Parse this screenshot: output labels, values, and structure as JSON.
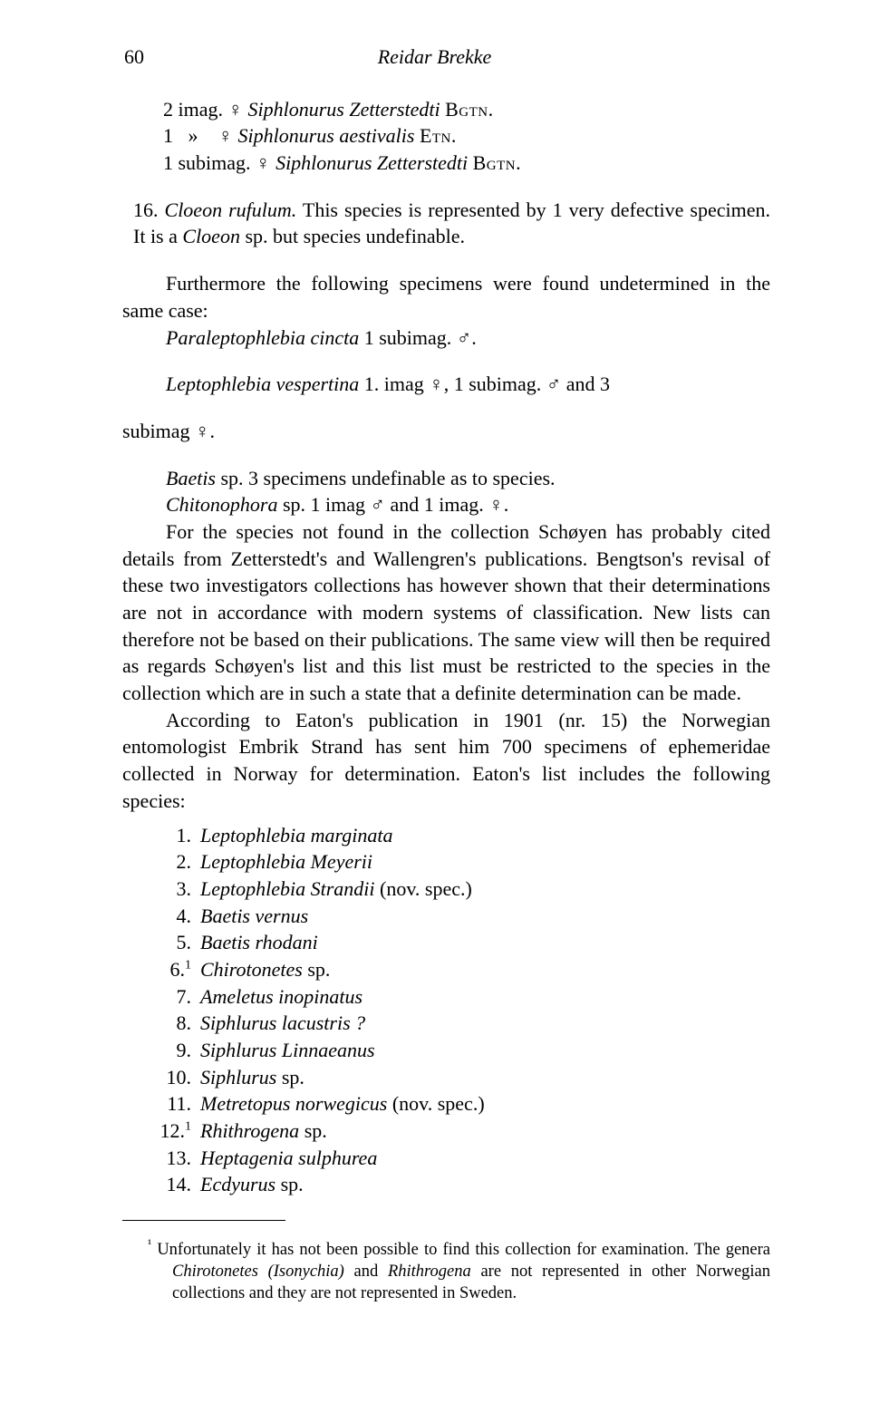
{
  "page_number": "60",
  "author": "Reidar Brekke",
  "entries": {
    "e1": "2 imag. ♀ Siphlonurus Zetterstedti Bgtn.",
    "e2": "1   »    ♀ Siphlonurus aestivalis Etn.",
    "e3": "1 subimag. ♀ Siphlonurus Zetterstedti Bgtn.",
    "e4_pre": "16. ",
    "e4_it": "Cloeon rufulum.",
    "e4_post": " This species is represented by 1 very defective specimen. It is a ",
    "e4_it2": "Cloeon",
    "e4_post2": " sp. but species undefinable."
  },
  "body": {
    "p1": "Furthermore the following specimens were found undetermined in the same case:",
    "p2_it": "Paraleptophlebia cincta",
    "p2_rest": " 1 subimag. ♂.",
    "p3_it": "Leptophlebia vespertina",
    "p3_rest": " 1. imag ♀, 1 subimag. ♂ and 3 subimag ♀.",
    "p4_it": "Baetis",
    "p4_rest": " sp. 3 specimens undefinable as to species.",
    "p5_it": "Chitonophora",
    "p5_rest": " sp. 1 imag ♂ and 1 imag. ♀.",
    "p6": "For the species not found in the collection Schøyen has probably cited details from Zetterstedt's and Wallengren's publications. Bengtson's revisal of these two investigators collections has however shown that their determinations are not in accordance with modern systems of classification. New lists can therefore not be based on their publications. The same view will then be required as regards Schøyen's list and this list must be restricted to the species in the collection which are in such a state that a definite determination can be made.",
    "p7": "According to Eaton's publication in 1901 (nr. 15) the Norwegian entomologist Embrik Strand has sent him 700 specimens of ephemeridae collected in Norway for determination. Eaton's list includes the following species:"
  },
  "list": [
    {
      "n": "1.",
      "label": "Leptophlebia marginata",
      "rest": ""
    },
    {
      "n": "2.",
      "label": "Leptophlebia Meyerii",
      "rest": ""
    },
    {
      "n": "3.",
      "label": "Leptophlebia Strandii",
      "rest": " (nov. spec.)"
    },
    {
      "n": "4.",
      "label": "Baetis vernus",
      "rest": ""
    },
    {
      "n": "5.",
      "label": "Baetis rhodani",
      "rest": ""
    },
    {
      "n": "6.¹",
      "label": "Chirotonetes",
      "rest": " sp."
    },
    {
      "n": "7.",
      "label": "Ameletus inopinatus",
      "rest": ""
    },
    {
      "n": "8.",
      "label": "Siphlurus lacustris ?",
      "rest": ""
    },
    {
      "n": "9.",
      "label": "Siphlurus Linnaeanus",
      "rest": ""
    },
    {
      "n": "10.",
      "label": "Siphlurus",
      "rest": " sp."
    },
    {
      "n": "11.",
      "label": "Metretopus norwegicus",
      "rest": " (nov. spec.)"
    },
    {
      "n": "12.¹",
      "label": "Rhithrogena",
      "rest": " sp."
    },
    {
      "n": "13.",
      "label": "Heptagenia sulphurea",
      "rest": ""
    },
    {
      "n": "14.",
      "label": "Ecdyurus",
      "rest": " sp."
    }
  ],
  "footnote": {
    "marker": "¹",
    "text_pre": " Unfortunately it has not been possible to find this collection for examination. The genera ",
    "it1": "Chirotonetes (Isonychia)",
    "text_mid": " and ",
    "it2": "Rhithrogena",
    "text_post": " are not represented in other Norwegian collections and they are not represented in Sweden."
  }
}
